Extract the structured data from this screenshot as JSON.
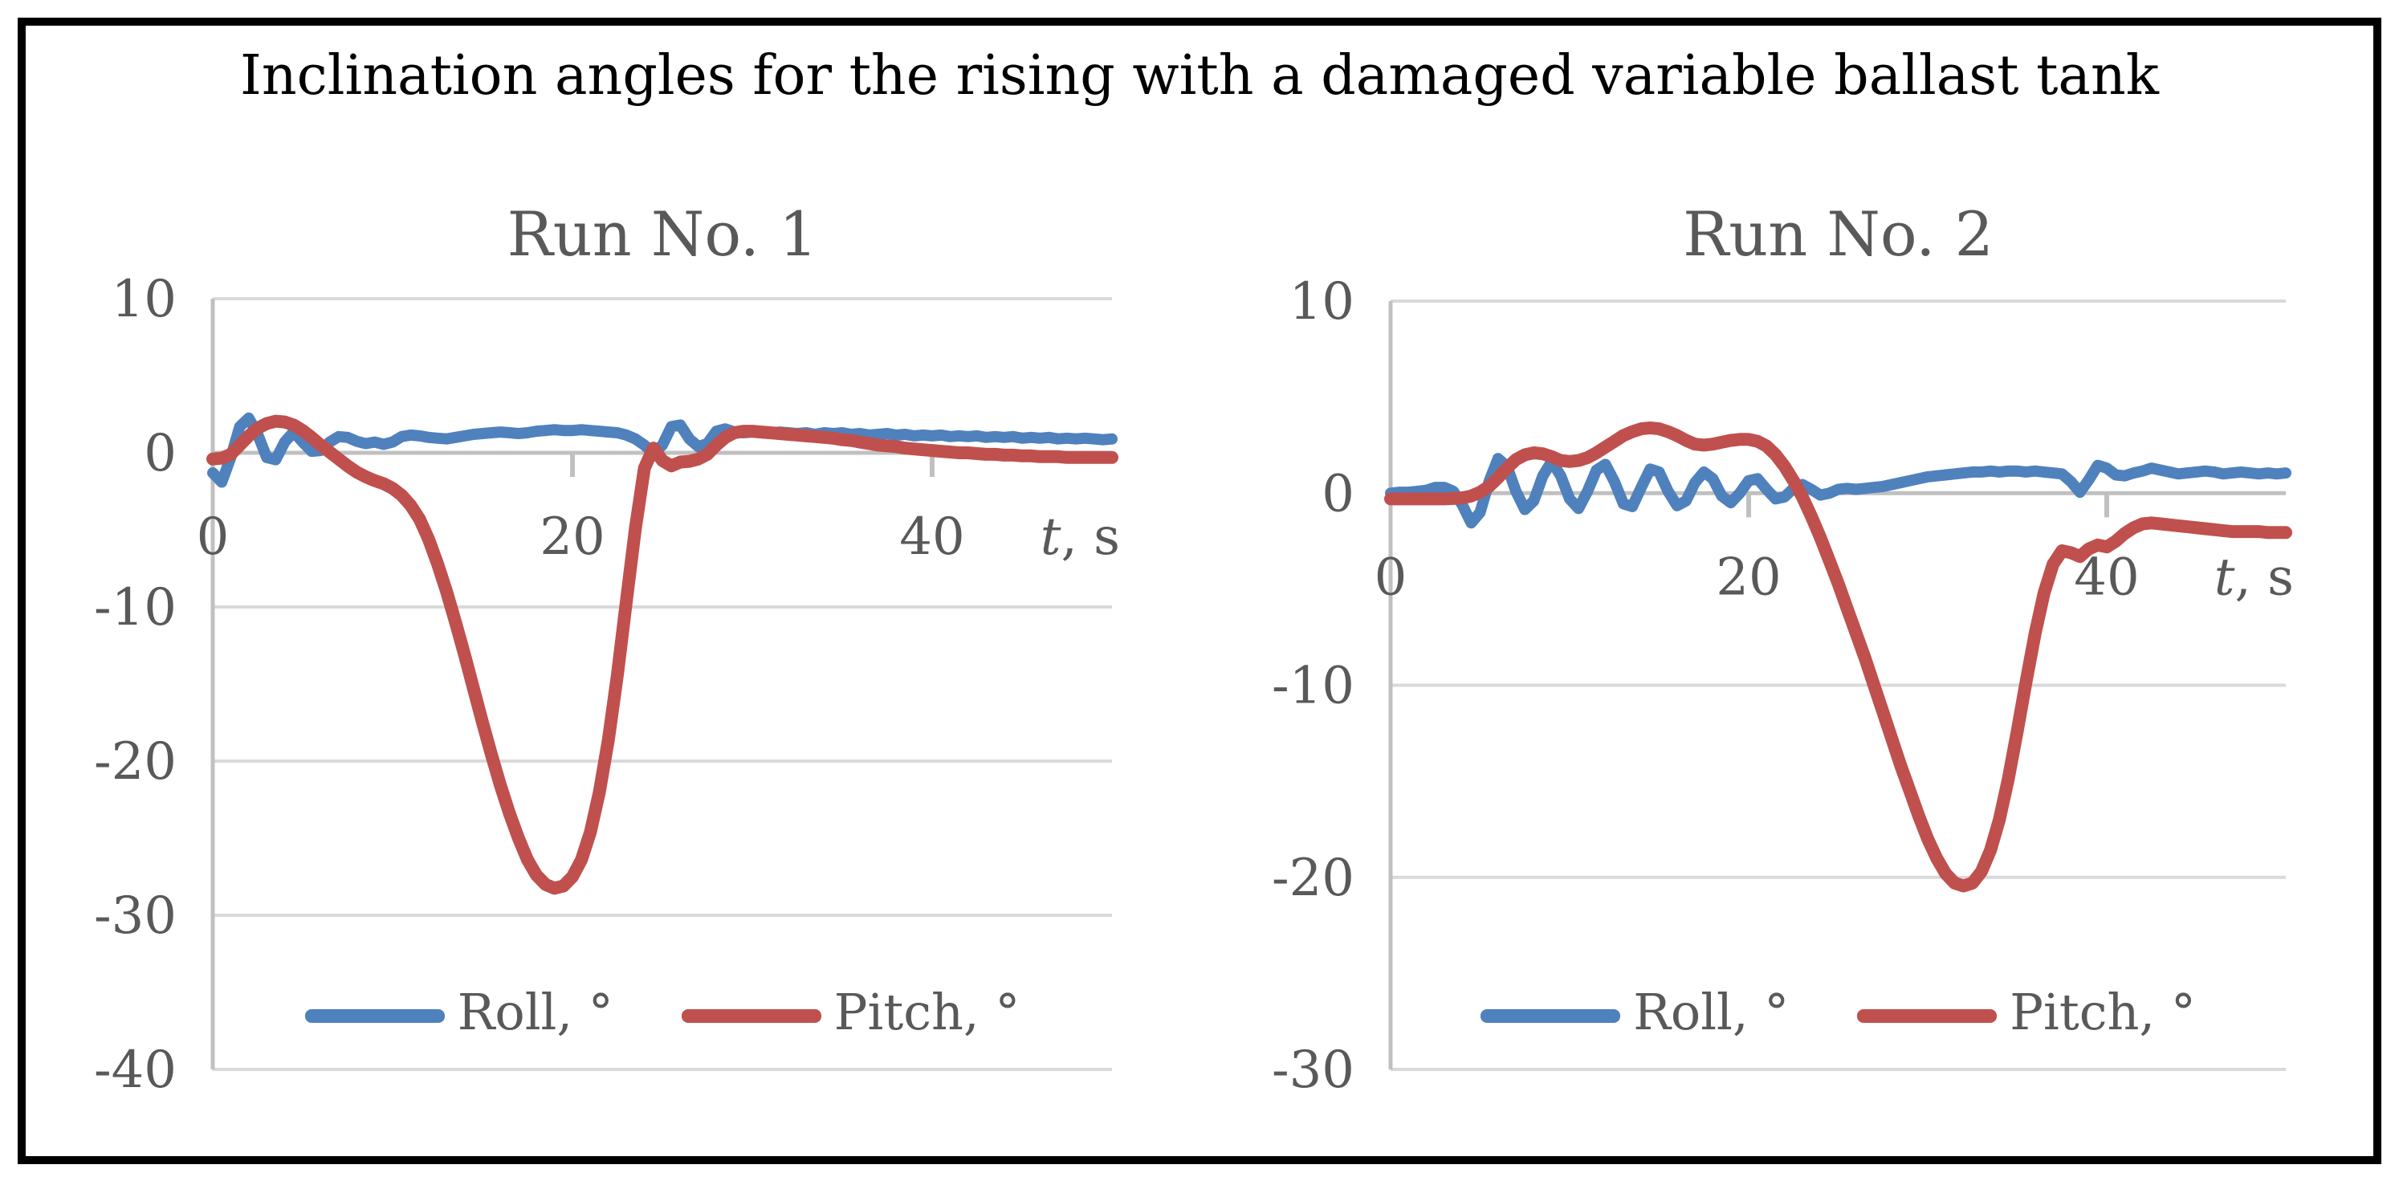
{
  "figure": {
    "title": "Inclination angles for the rising with a damaged variable ballast tank"
  },
  "style": {
    "series_roll": "#4f81bd",
    "series_pitch": "#c0504d",
    "gridline": "#d9d9d9",
    "axis_line": "#c0c0c0",
    "text_gray": "#595959",
    "title_black": "#000000"
  },
  "chart_data": [
    {
      "type": "line",
      "title": "Run No. 1",
      "xlabel": {
        "text": "t, s",
        "italic_part": "t",
        "regular_part": ", s"
      },
      "xlim": [
        0,
        50
      ],
      "ylim": [
        -40,
        10
      ],
      "xticks": [
        0,
        20,
        40
      ],
      "yticks": [
        10,
        0,
        -10,
        -20,
        -30,
        -40
      ],
      "grid": true,
      "legend_position": "bottom-inside",
      "t_start": 0,
      "t_step": 0.5,
      "series": [
        {
          "name": "Roll, °",
          "color": "#4f81bd",
          "values": [
            -1.3,
            -1.9,
            -0.3,
            1.7,
            2.25,
            1.2,
            -0.3,
            -0.45,
            0.7,
            1.35,
            0.7,
            0.1,
            0.15,
            0.7,
            1.05,
            1.0,
            0.75,
            0.6,
            0.7,
            0.55,
            0.7,
            1.05,
            1.15,
            1.1,
            1.0,
            0.95,
            0.9,
            1.0,
            1.1,
            1.2,
            1.25,
            1.3,
            1.35,
            1.3,
            1.25,
            1.3,
            1.4,
            1.45,
            1.5,
            1.45,
            1.45,
            1.5,
            1.45,
            1.4,
            1.35,
            1.3,
            1.15,
            0.9,
            0.5,
            0.0,
            0.5,
            1.7,
            1.8,
            0.9,
            0.4,
            0.6,
            1.4,
            1.55,
            1.35,
            1.3,
            1.35,
            1.3,
            1.25,
            1.35,
            1.3,
            1.25,
            1.3,
            1.2,
            1.3,
            1.25,
            1.3,
            1.2,
            1.25,
            1.15,
            1.2,
            1.25,
            1.15,
            1.2,
            1.1,
            1.15,
            1.1,
            1.15,
            1.05,
            1.1,
            1.05,
            1.1,
            1.0,
            1.05,
            1.0,
            1.05,
            0.95,
            1.0,
            0.95,
            1.0,
            0.9,
            0.95,
            0.9,
            0.95,
            0.9,
            0.85,
            0.9
          ]
        },
        {
          "name": "Pitch, °",
          "color": "#c0504d",
          "values": [
            -0.4,
            -0.35,
            -0.1,
            0.5,
            1.1,
            1.6,
            1.9,
            2.05,
            2.0,
            1.8,
            1.45,
            1.0,
            0.5,
            0.05,
            -0.4,
            -0.85,
            -1.25,
            -1.55,
            -1.8,
            -2.0,
            -2.3,
            -2.75,
            -3.4,
            -4.3,
            -5.6,
            -7.2,
            -9.0,
            -11.0,
            -13.1,
            -15.3,
            -17.5,
            -19.6,
            -21.6,
            -23.4,
            -25.0,
            -26.4,
            -27.4,
            -28.0,
            -28.25,
            -28.1,
            -27.5,
            -26.4,
            -24.6,
            -22.0,
            -18.6,
            -14.4,
            -9.6,
            -4.9,
            -1.0,
            0.3,
            -0.5,
            -0.85,
            -0.6,
            -0.55,
            -0.4,
            -0.1,
            0.5,
            1.0,
            1.3,
            1.4,
            1.4,
            1.35,
            1.3,
            1.25,
            1.2,
            1.15,
            1.1,
            1.05,
            1.0,
            0.95,
            0.85,
            0.8,
            0.7,
            0.6,
            0.5,
            0.45,
            0.4,
            0.3,
            0.25,
            0.2,
            0.15,
            0.1,
            0.05,
            0.0,
            0.0,
            -0.05,
            -0.1,
            -0.1,
            -0.15,
            -0.15,
            -0.2,
            -0.2,
            -0.25,
            -0.25,
            -0.25,
            -0.3,
            -0.3,
            -0.3,
            -0.3,
            -0.3,
            -0.3
          ]
        }
      ]
    },
    {
      "type": "line",
      "title": "Run No. 2",
      "xlabel": {
        "text": "t, s",
        "italic_part": "t",
        "regular_part": ", s"
      },
      "xlim": [
        0,
        50
      ],
      "ylim": [
        -30,
        10
      ],
      "xticks": [
        0,
        20,
        40
      ],
      "yticks": [
        10,
        0,
        -10,
        -20,
        -30
      ],
      "grid": true,
      "legend_position": "bottom-inside",
      "t_start": 0,
      "t_step": 0.5,
      "series": [
        {
          "name": "Roll, °",
          "color": "#4f81bd",
          "values": [
            0.0,
            0.05,
            0.05,
            0.1,
            0.15,
            0.3,
            0.3,
            0.1,
            -0.6,
            -1.55,
            -1.0,
            0.6,
            1.8,
            1.4,
            0.1,
            -0.85,
            -0.4,
            0.9,
            1.65,
            0.9,
            -0.3,
            -0.8,
            0.1,
            1.2,
            1.5,
            0.6,
            -0.55,
            -0.7,
            0.3,
            1.25,
            1.1,
            0.1,
            -0.65,
            -0.4,
            0.55,
            1.1,
            0.75,
            -0.15,
            -0.5,
            0.0,
            0.65,
            0.75,
            0.2,
            -0.3,
            -0.2,
            0.25,
            0.45,
            0.2,
            -0.1,
            0.0,
            0.2,
            0.25,
            0.2,
            0.25,
            0.3,
            0.35,
            0.45,
            0.55,
            0.65,
            0.75,
            0.85,
            0.9,
            0.95,
            1.0,
            1.05,
            1.1,
            1.1,
            1.15,
            1.1,
            1.15,
            1.15,
            1.1,
            1.15,
            1.1,
            1.05,
            1.0,
            0.6,
            0.05,
            0.7,
            1.45,
            1.3,
            0.95,
            0.9,
            1.05,
            1.15,
            1.3,
            1.2,
            1.1,
            1.0,
            1.05,
            1.1,
            1.15,
            1.1,
            1.0,
            1.05,
            1.1,
            1.05,
            1.0,
            1.05,
            1.0,
            1.05
          ]
        },
        {
          "name": "Pitch, °",
          "color": "#c0504d",
          "values": [
            -0.3,
            -0.3,
            -0.3,
            -0.3,
            -0.3,
            -0.3,
            -0.3,
            -0.28,
            -0.25,
            -0.15,
            0.05,
            0.35,
            0.8,
            1.3,
            1.75,
            2.0,
            2.1,
            2.05,
            1.9,
            1.7,
            1.65,
            1.7,
            1.85,
            2.1,
            2.4,
            2.7,
            3.0,
            3.2,
            3.35,
            3.4,
            3.35,
            3.2,
            3.0,
            2.75,
            2.55,
            2.5,
            2.55,
            2.65,
            2.75,
            2.8,
            2.8,
            2.7,
            2.45,
            2.0,
            1.4,
            0.65,
            -0.2,
            -1.2,
            -2.3,
            -3.5,
            -4.7,
            -6.0,
            -7.3,
            -8.6,
            -10.0,
            -11.4,
            -12.8,
            -14.2,
            -15.5,
            -16.8,
            -18.0,
            -19.0,
            -19.8,
            -20.3,
            -20.45,
            -20.3,
            -19.7,
            -18.6,
            -17.0,
            -14.9,
            -12.4,
            -9.8,
            -7.3,
            -5.2,
            -3.7,
            -3.0,
            -3.1,
            -3.3,
            -2.9,
            -2.7,
            -2.8,
            -2.5,
            -2.1,
            -1.8,
            -1.6,
            -1.55,
            -1.6,
            -1.65,
            -1.7,
            -1.75,
            -1.8,
            -1.85,
            -1.9,
            -1.95,
            -2.0,
            -2.0,
            -2.0,
            -2.0,
            -2.05,
            -2.05,
            -2.05
          ]
        }
      ]
    }
  ]
}
